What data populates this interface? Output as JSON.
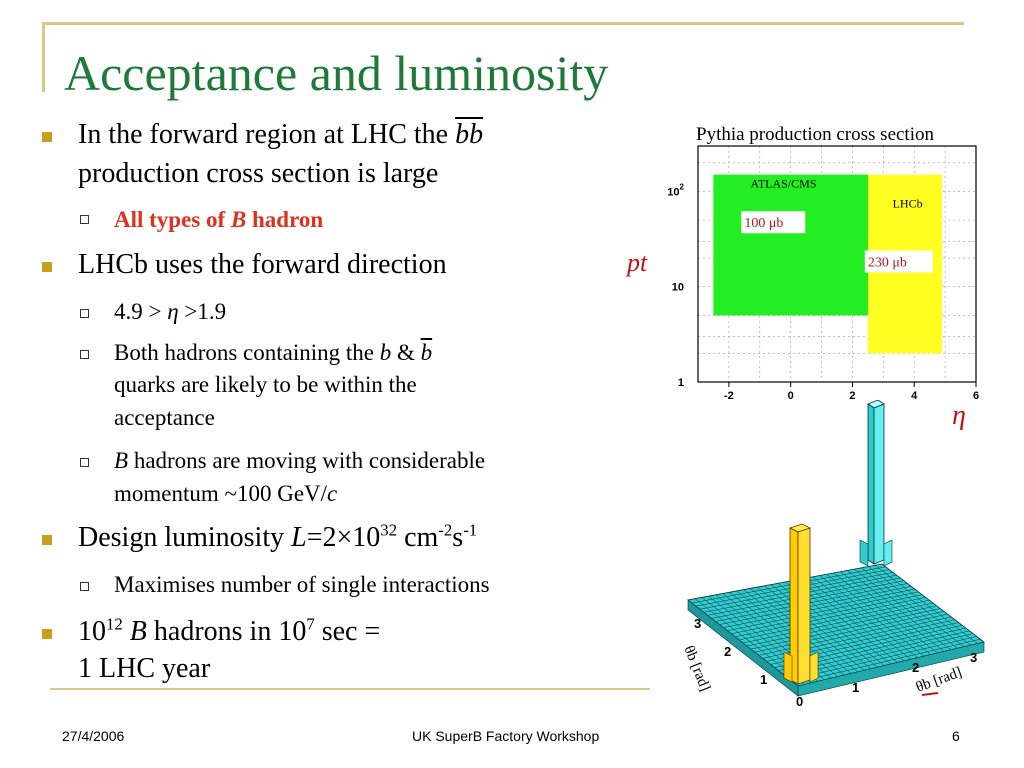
{
  "title": "Acceptance and luminosity",
  "bullets": {
    "b1_line1": "In the forward region at LHC the ",
    "b1_bb": "bb",
    "b1_line2": "production cross section is large",
    "b1_sub1_pre": "All types of ",
    "b1_sub1_B": "B",
    "b1_sub1_post": " hadron",
    "b2": "LHCb uses the forward direction",
    "b2_sub1_pre": "4.9 > ",
    "b2_sub1_eta": "η",
    "b2_sub1_post": " >1.9",
    "b2_sub2_line1_pre": "Both hadrons containing the ",
    "b2_sub2_b": "b",
    "b2_sub2_amp": " & ",
    "b2_sub2_bbar": "b",
    "b2_sub2_line2": "quarks are likely to be within the",
    "b2_sub2_line3": "acceptance",
    "b2_sub3_B": "B",
    "b2_sub3_line1": " hadrons are moving with considerable",
    "b2_sub3_line2_pre": "momentum ~100 GeV/",
    "b2_sub3_c": "c",
    "b3_pre": "Design luminosity ",
    "b3_L": "L",
    "b3_eq": "=2×10",
    "b3_exp1": "32",
    "b3_cm": " cm",
    "b3_exp2": "-2",
    "b3_s": "s",
    "b3_exp3": "-1",
    "b3_sub1": "Maximises number of single interactions",
    "b4_10a": "10",
    "b4_exp1": "12",
    "b4_B": " B",
    "b4_mid": " hadrons in 10",
    "b4_exp2": "7",
    "b4_post": " sec =",
    "b4_line2": "1 LHC year"
  },
  "chart_title": "Pythia production cross section",
  "chart_data": {
    "type": "area",
    "title": "Pythia production cross section",
    "xlabel": "η",
    "ylabel": "pt",
    "x_ticks": [
      "-2",
      "0",
      "2",
      "4",
      "6"
    ],
    "y_ticks": [
      "1",
      "10",
      "10 2"
    ],
    "xlim": [
      -3,
      6
    ],
    "ylog": true,
    "regions": [
      {
        "name": "ATLAS/CMS",
        "label": "100 μb",
        "eta_range": [
          -2.5,
          2.5
        ],
        "color": "#22ee22"
      },
      {
        "name": "LHCb",
        "label": "230 μb",
        "eta_range": [
          1.9,
          4.9
        ],
        "color": "#ffff22"
      }
    ]
  },
  "plot3d": {
    "axis1_label": "θb [rad]",
    "axis2_label": "θb [rad]",
    "ticks1": [
      "3",
      "2",
      "1",
      "0"
    ],
    "ticks2": [
      "1",
      "2",
      "3"
    ],
    "zero": "0"
  },
  "footer": {
    "date": "27/4/2006",
    "event": "UK SuperB Factory Workshop",
    "page": "6"
  }
}
